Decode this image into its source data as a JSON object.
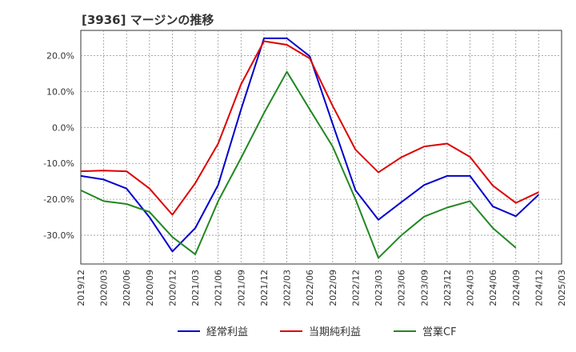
{
  "chart_data": {
    "type": "line",
    "title": "[3936]  マージンの推移",
    "xlabel": "",
    "ylabel": "",
    "x": [
      "2019/12",
      "2020/03",
      "2020/06",
      "2020/09",
      "2020/12",
      "2021/03",
      "2021/06",
      "2021/09",
      "2021/12",
      "2022/03",
      "2022/06",
      "2022/09",
      "2022/12",
      "2023/03",
      "2023/06",
      "2023/09",
      "2023/12",
      "2024/03",
      "2024/06",
      "2024/09",
      "2024/12",
      "2025/03"
    ],
    "ylim": [
      -38,
      27
    ],
    "yticks": [
      20,
      10,
      0,
      -10,
      -20,
      -30
    ],
    "ytick_labels": [
      "20.0%",
      "10.0%",
      "0.0%",
      "-10.0%",
      "-20.0%",
      "-30.0%"
    ],
    "grid": true,
    "legend_position": "bottom",
    "series": [
      {
        "name": "経常利益",
        "color": "#0000cc",
        "values": [
          -13.5,
          -14.5,
          -17.0,
          -25.0,
          -34.5,
          -28.0,
          -16.0,
          5.0,
          24.8,
          24.8,
          19.8,
          1.0,
          -17.5,
          -25.7,
          -20.8,
          -16.0,
          -13.5,
          -13.5,
          -22.0,
          -24.7,
          -18.7,
          null
        ]
      },
      {
        "name": "当期純利益",
        "color": "#dd0000",
        "values": [
          -12.2,
          -12.0,
          -12.2,
          -17.0,
          -24.3,
          -15.5,
          -4.5,
          12.0,
          24.0,
          23.0,
          19.2,
          6.0,
          -6.2,
          -12.5,
          -8.3,
          -5.3,
          -4.5,
          -8.2,
          -16.2,
          -21.0,
          -18.0,
          null
        ]
      },
      {
        "name": "営業CF",
        "color": "#228822",
        "values": [
          -17.5,
          -20.5,
          -21.3,
          -23.5,
          -30.5,
          -35.3,
          -20.5,
          -8.5,
          4.0,
          15.5,
          5.0,
          -5.3,
          -20.0,
          -36.3,
          -30.0,
          -24.8,
          -22.3,
          -20.5,
          -28.0,
          -33.5,
          null,
          null
        ]
      }
    ]
  }
}
